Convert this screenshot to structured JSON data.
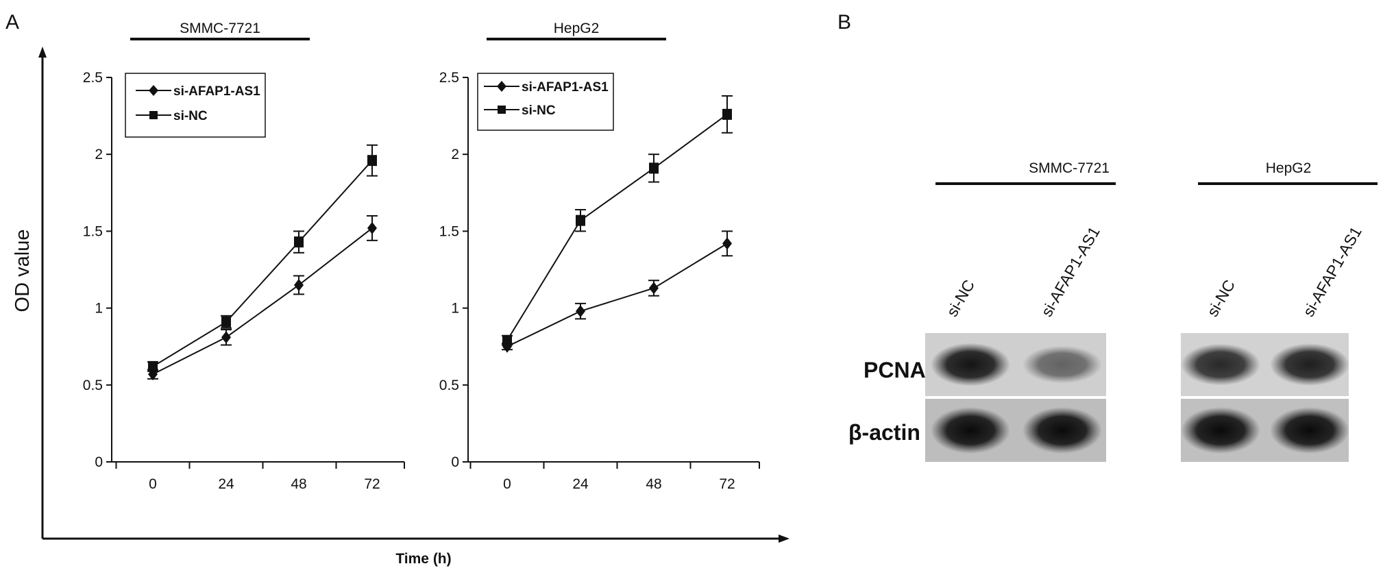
{
  "panel_labels": {
    "a": "A",
    "b": "B"
  },
  "shared_axes": {
    "ylabel": "OD value",
    "xlabel": "Time (h)"
  },
  "chart_data": [
    {
      "type": "line",
      "title": "SMMC-7721",
      "x": [
        0,
        24,
        48,
        72
      ],
      "xticks": [
        "0",
        "24",
        "48",
        "72"
      ],
      "ylim": [
        0,
        2.5
      ],
      "yticks": [
        "0",
        "0.5",
        "1",
        "1.5",
        "2",
        "2.5"
      ],
      "legend_position": "top-left",
      "series": [
        {
          "name": "si-AFAP1-AS1",
          "marker": "diamond",
          "values": [
            0.57,
            0.81,
            1.15,
            1.52
          ],
          "errors": [
            0.03,
            0.05,
            0.06,
            0.08
          ]
        },
        {
          "name": "si-NC",
          "marker": "square",
          "values": [
            0.62,
            0.91,
            1.43,
            1.96
          ],
          "errors": [
            0.03,
            0.04,
            0.07,
            0.1
          ]
        }
      ]
    },
    {
      "type": "line",
      "title": "HepG2",
      "x": [
        0,
        24,
        48,
        72
      ],
      "xticks": [
        "0",
        "24",
        "48",
        "72"
      ],
      "ylim": [
        0,
        2.5
      ],
      "yticks": [
        "0",
        "0.5",
        "1",
        "1.5",
        "2",
        "2.5"
      ],
      "legend_position": "top-left",
      "series": [
        {
          "name": "si-AFAP1-AS1",
          "marker": "diamond",
          "values": [
            0.75,
            0.98,
            1.13,
            1.42
          ],
          "errors": [
            0.02,
            0.05,
            0.05,
            0.08
          ]
        },
        {
          "name": "si-NC",
          "marker": "square",
          "values": [
            0.79,
            1.57,
            1.91,
            2.26
          ],
          "errors": [
            0.03,
            0.07,
            0.09,
            0.12
          ]
        }
      ]
    }
  ],
  "western_blot": {
    "groups": [
      {
        "title": "SMMC-7721",
        "lanes": [
          "si-NC",
          "si-AFAP1-AS1"
        ]
      },
      {
        "title": "HepG2",
        "lanes": [
          "si-NC",
          "si-AFAP1-AS1"
        ]
      }
    ],
    "rows": [
      {
        "label": "PCNA",
        "band_intensity": [
          [
            0.95,
            0.55
          ],
          [
            0.85,
            0.9
          ]
        ]
      },
      {
        "label": "β-actin",
        "band_intensity": [
          [
            1.0,
            1.0
          ],
          [
            1.0,
            1.0
          ]
        ]
      }
    ]
  }
}
